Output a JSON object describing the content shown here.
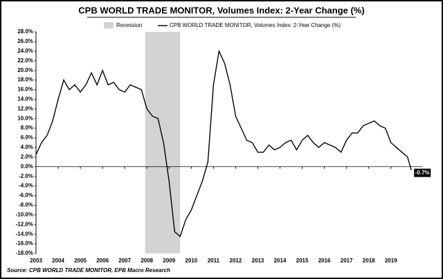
{
  "chart_data": {
    "type": "line",
    "title": "CPB WORLD TRADE MONITOR, Volumes Index: 2-Year Change (%)",
    "source": "Source: CPB WORLD TRADE MONITOR, EPB Macro Research",
    "recession": {
      "name": "Recession",
      "start": 2007.92,
      "end": 2009.5,
      "color": "#d3d3d3"
    },
    "x": [
      2003.0,
      2003.25,
      2003.5,
      2003.75,
      2004.0,
      2004.25,
      2004.5,
      2004.75,
      2005.0,
      2005.25,
      2005.5,
      2005.75,
      2006.0,
      2006.25,
      2006.5,
      2006.75,
      2007.0,
      2007.25,
      2007.5,
      2007.75,
      2008.0,
      2008.25,
      2008.5,
      2008.75,
      2009.0,
      2009.25,
      2009.5,
      2009.75,
      2010.0,
      2010.25,
      2010.5,
      2010.75,
      2011.0,
      2011.25,
      2011.5,
      2011.75,
      2012.0,
      2012.25,
      2012.5,
      2012.75,
      2013.0,
      2013.25,
      2013.5,
      2013.75,
      2014.0,
      2014.25,
      2014.5,
      2014.75,
      2015.0,
      2015.25,
      2015.5,
      2015.75,
      2016.0,
      2016.25,
      2016.5,
      2016.75,
      2017.0,
      2017.25,
      2017.5,
      2017.75,
      2018.0,
      2018.25,
      2018.5,
      2018.75,
      2019.0,
      2019.25,
      2019.5,
      2019.75,
      2019.92
    ],
    "series": [
      {
        "name": "CPB WORLD TRADE MONITOR, Volumes Index: 2-Year Change (%)",
        "color": "#000000",
        "values": [
          2.5,
          5,
          6.5,
          9.5,
          14,
          18,
          16,
          17,
          15.5,
          17,
          19.5,
          17,
          20,
          17,
          17.5,
          16,
          15.5,
          17,
          16.5,
          16,
          12,
          10.5,
          10,
          5,
          -3,
          -13.5,
          -14.5,
          -11,
          -9,
          -6,
          -3,
          1,
          17,
          24,
          21.5,
          17,
          10.5,
          8,
          5.5,
          5,
          3,
          3,
          4.5,
          3.5,
          4,
          5,
          5.5,
          3.5,
          5.5,
          6.5,
          5,
          4,
          5,
          4.5,
          4,
          3,
          5.5,
          7,
          7,
          8.5,
          9,
          9.5,
          8.5,
          8,
          5,
          4,
          3,
          2,
          -0.7
        ]
      }
    ],
    "last_label": "-0.7%",
    "xlim": [
      2003,
      2020.1
    ],
    "xticks": [
      2003,
      2004,
      2005,
      2006,
      2007,
      2008,
      2009,
      2010,
      2011,
      2012,
      2013,
      2014,
      2015,
      2016,
      2017,
      2018,
      2019
    ],
    "ylim": [
      -18,
      28
    ],
    "yticks": [
      {
        "value": 28,
        "label": "28.0%"
      },
      {
        "value": 26,
        "label": "26.0%"
      },
      {
        "value": 24,
        "label": "24.0%"
      },
      {
        "value": 22,
        "label": "22.0%"
      },
      {
        "value": 20,
        "label": "20.0%"
      },
      {
        "value": 18,
        "label": "18.0%"
      },
      {
        "value": 16,
        "label": "16.0%"
      },
      {
        "value": 14,
        "label": "14.0%"
      },
      {
        "value": 12,
        "label": "12.0%"
      },
      {
        "value": 10,
        "label": "10.0%"
      },
      {
        "value": 8,
        "label": "8.0%"
      },
      {
        "value": 6,
        "label": "6.0%"
      },
      {
        "value": 4,
        "label": "4.0%"
      },
      {
        "value": 2,
        "label": "2.0%"
      },
      {
        "value": 0,
        "label": "0.0%"
      },
      {
        "value": -2,
        "label": "-2.0%"
      },
      {
        "value": -4,
        "label": "-4.0%"
      },
      {
        "value": -6,
        "label": "-6.0%"
      },
      {
        "value": -8,
        "label": "-8.0%"
      },
      {
        "value": -10,
        "label": "-10.0%"
      },
      {
        "value": -12,
        "label": "-12.0%"
      },
      {
        "value": -14,
        "label": "-14.0%"
      },
      {
        "value": -16,
        "label": "-16.0%"
      },
      {
        "value": -18,
        "label": "-18.0%"
      }
    ],
    "grid": false
  }
}
